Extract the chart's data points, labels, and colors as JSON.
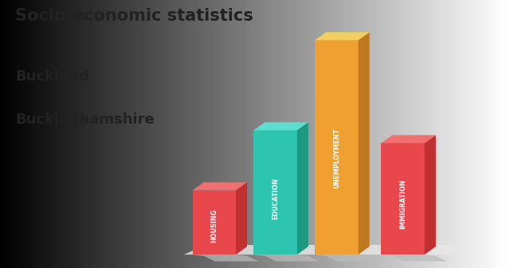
{
  "title_line1": "Socio-economic statistics",
  "title_line2": "Buckland",
  "title_line3": "Buckinghamshire",
  "categories": [
    "HOUSING",
    "EDUCATION",
    "UNEMPLOYMENT",
    "IMMIGRATION"
  ],
  "values": [
    0.3,
    0.58,
    1.0,
    0.52
  ],
  "front_colors": [
    "#E8474C",
    "#2DC5B0",
    "#F0A030",
    "#E8474C"
  ],
  "side_colors": [
    "#C03030",
    "#1E9880",
    "#C07820",
    "#C03030"
  ],
  "top_colors": [
    "#F07070",
    "#5DDDD0",
    "#F0D060",
    "#F07070"
  ],
  "label_color": "#ffffff",
  "background_color": "#C8C8C8",
  "title_color": "#222222",
  "floor_color": "#E0E0E0",
  "shadow_color": "#B0B0B0"
}
